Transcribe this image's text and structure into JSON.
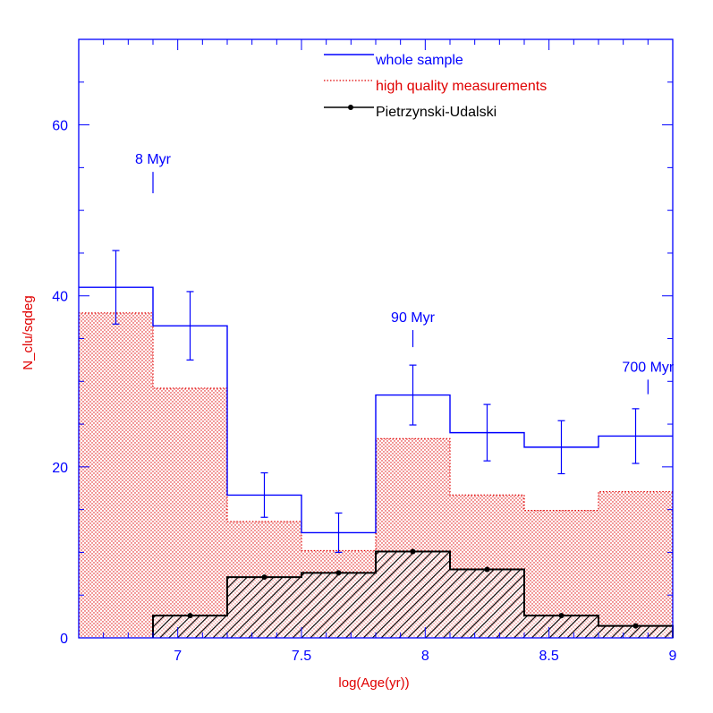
{
  "chart_data": {
    "type": "histogram",
    "title": "",
    "xlabel": "log(Age(yr))",
    "ylabel": "N_clu/sqdeg",
    "xlim": [
      6.6,
      9.0
    ],
    "ylim": [
      0,
      70
    ],
    "x_ticks": [
      7,
      7.5,
      8,
      8.5,
      9
    ],
    "x_tick_labels": [
      "7",
      "7.5",
      "8",
      "8.5",
      "9"
    ],
    "y_ticks": [
      0,
      20,
      40,
      60
    ],
    "y_tick_labels": [
      "0",
      "20",
      "40",
      "60"
    ],
    "grid": false,
    "legend_position": "top-center",
    "colors": {
      "axes": "#0000ff",
      "whole_sample": "#0000ff",
      "high_quality": "#e00000",
      "pietrzynski": "#000000",
      "ylabel": "#e00000",
      "xlabel": "#e00000"
    },
    "series": [
      {
        "name": "whole sample",
        "style": "step-line",
        "bins": [
          {
            "x0": 6.6,
            "x1": 6.9,
            "y": 41
          },
          {
            "x0": 6.9,
            "x1": 7.2,
            "y": 36.5
          },
          {
            "x0": 7.2,
            "x1": 7.5,
            "y": 16.7
          },
          {
            "x0": 7.5,
            "x1": 7.8,
            "y": 12.3
          },
          {
            "x0": 7.8,
            "x1": 8.1,
            "y": 28.4
          },
          {
            "x0": 8.1,
            "x1": 8.4,
            "y": 24
          },
          {
            "x0": 8.4,
            "x1": 8.7,
            "y": 22.3
          },
          {
            "x0": 8.7,
            "x1": 9.0,
            "y": 23.6
          }
        ],
        "error_bars": [
          {
            "x": 6.75,
            "y": 41,
            "err": 4.3
          },
          {
            "x": 7.05,
            "y": 36.5,
            "err": 4.0
          },
          {
            "x": 7.35,
            "y": 16.7,
            "err": 2.6
          },
          {
            "x": 7.65,
            "y": 12.3,
            "err": 2.3
          },
          {
            "x": 7.95,
            "y": 28.4,
            "err": 3.5
          },
          {
            "x": 8.25,
            "y": 24,
            "err": 3.3
          },
          {
            "x": 8.55,
            "y": 22.3,
            "err": 3.1
          },
          {
            "x": 8.85,
            "y": 23.6,
            "err": 3.2
          }
        ]
      },
      {
        "name": "high quality measurements",
        "style": "dotted-filled",
        "bins": [
          {
            "x0": 6.6,
            "x1": 6.9,
            "y": 38
          },
          {
            "x0": 6.9,
            "x1": 7.2,
            "y": 29.2
          },
          {
            "x0": 7.2,
            "x1": 7.5,
            "y": 13.6
          },
          {
            "x0": 7.5,
            "x1": 7.8,
            "y": 10.2
          },
          {
            "x0": 7.8,
            "x1": 8.1,
            "y": 23.3
          },
          {
            "x0": 8.1,
            "x1": 8.4,
            "y": 16.7
          },
          {
            "x0": 8.4,
            "x1": 8.7,
            "y": 14.9
          },
          {
            "x0": 8.7,
            "x1": 9.0,
            "y": 17.1
          }
        ]
      },
      {
        "name": "Pietrzynski-Udalski",
        "style": "hatched-filled-with-points",
        "bins": [
          {
            "x0": 6.9,
            "x1": 7.2,
            "y": 2.6
          },
          {
            "x0": 7.2,
            "x1": 7.5,
            "y": 7.1
          },
          {
            "x0": 7.5,
            "x1": 7.8,
            "y": 7.6
          },
          {
            "x0": 7.8,
            "x1": 8.1,
            "y": 10.1
          },
          {
            "x0": 8.1,
            "x1": 8.4,
            "y": 8.0
          },
          {
            "x0": 8.4,
            "x1": 8.7,
            "y": 2.6
          },
          {
            "x0": 8.7,
            "x1": 9.0,
            "y": 1.4
          }
        ],
        "points": [
          {
            "x": 7.05,
            "y": 2.6
          },
          {
            "x": 7.35,
            "y": 7.1
          },
          {
            "x": 7.65,
            "y": 7.6
          },
          {
            "x": 7.95,
            "y": 10.1
          },
          {
            "x": 8.25,
            "y": 8.0
          },
          {
            "x": 8.55,
            "y": 2.6
          },
          {
            "x": 8.85,
            "y": 1.4
          }
        ]
      }
    ],
    "annotations": [
      {
        "text": "8 Myr",
        "x": 6.9,
        "y_mark_bottom": 52,
        "y_mark_top": 54.5
      },
      {
        "text": "90 Myr",
        "x": 7.95,
        "y_mark_bottom": 34,
        "y_mark_top": 36
      },
      {
        "text": "700 Myr",
        "x": 8.9,
        "y_mark_bottom": 28.5,
        "y_mark_top": 30.2
      }
    ]
  }
}
